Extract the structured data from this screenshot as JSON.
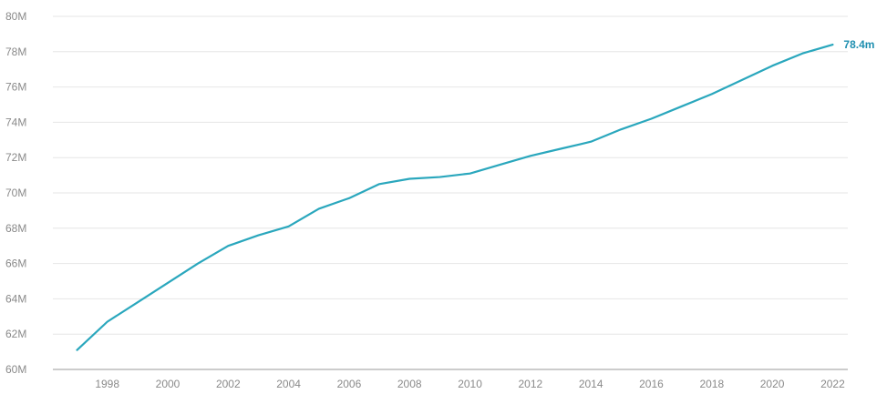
{
  "chart_data": {
    "type": "line",
    "title": "",
    "xlabel": "",
    "ylabel": "",
    "x": [
      1997,
      1998,
      1999,
      2000,
      2001,
      2002,
      2003,
      2004,
      2005,
      2006,
      2007,
      2008,
      2009,
      2010,
      2011,
      2012,
      2013,
      2014,
      2015,
      2016,
      2017,
      2018,
      2019,
      2020,
      2021,
      2022
    ],
    "series": [
      {
        "name": "",
        "values": [
          61.1,
          62.7,
          63.8,
          64.9,
          66.0,
          67.0,
          67.6,
          68.1,
          69.1,
          69.7,
          70.5,
          70.8,
          70.9,
          71.1,
          71.6,
          72.1,
          72.5,
          72.9,
          73.6,
          74.2,
          74.9,
          75.6,
          76.4,
          77.2,
          77.9,
          78.4
        ],
        "end_label": "78.4m",
        "color": "#2aa7bd"
      }
    ],
    "x_ticks": [
      "1998",
      "2000",
      "2002",
      "2004",
      "2006",
      "2008",
      "2010",
      "2012",
      "2014",
      "2016",
      "2018",
      "2020",
      "2022"
    ],
    "x_tick_values": [
      1998,
      2000,
      2002,
      2004,
      2006,
      2008,
      2010,
      2012,
      2014,
      2016,
      2018,
      2020,
      2022
    ],
    "y_ticks": [
      "60M",
      "62M",
      "64M",
      "66M",
      "68M",
      "70M",
      "72M",
      "74M",
      "76M",
      "78M",
      "80M"
    ],
    "y_tick_values": [
      60,
      62,
      64,
      66,
      68,
      70,
      72,
      74,
      76,
      78,
      80
    ],
    "xlim": [
      1996.2,
      2022.5
    ],
    "ylim": [
      60,
      80
    ],
    "grid": true,
    "legend": "none",
    "end_label_color": "#1f8fb0"
  }
}
